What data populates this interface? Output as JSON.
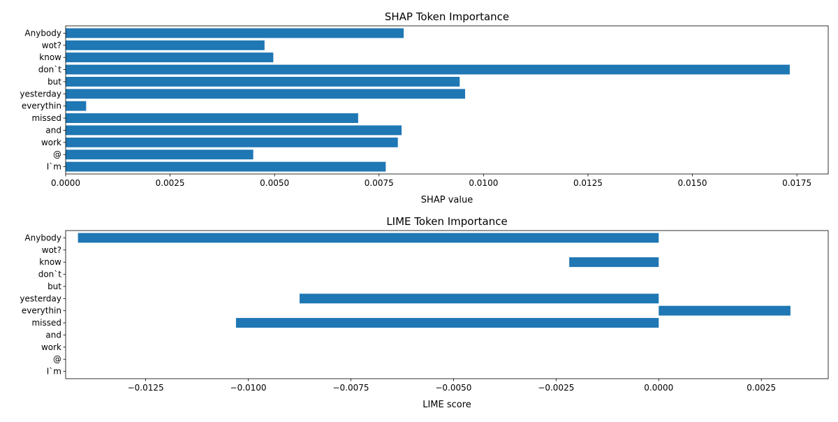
{
  "colors": {
    "bar": "#1f77b4",
    "axis": "#000000",
    "background": "#ffffff"
  },
  "chart_data": [
    {
      "type": "bar",
      "orientation": "horizontal",
      "title": "SHAP Token Importance",
      "xlabel": "SHAP value",
      "ylabel": "",
      "categories": [
        "Anybody",
        "wot?",
        "know",
        "don`t",
        "but",
        "yesterday",
        "everythin",
        "missed",
        "and",
        "work",
        "@",
        "I`m"
      ],
      "values": [
        0.00809,
        0.00476,
        0.00497,
        0.01733,
        0.00943,
        0.00956,
        0.00049,
        0.007,
        0.00804,
        0.00795,
        0.00449,
        0.00766
      ],
      "xlim": [
        0.0,
        0.01825
      ],
      "xticks": [
        0.0,
        0.0025,
        0.005,
        0.0075,
        0.01,
        0.0125,
        0.015,
        0.0175
      ],
      "xtick_labels": [
        "0.0000",
        "0.0025",
        "0.0050",
        "0.0075",
        "0.0100",
        "0.0125",
        "0.0150",
        "0.0175"
      ],
      "grid": false,
      "legend": "none"
    },
    {
      "type": "bar",
      "orientation": "horizontal",
      "title": "LIME Token Importance",
      "xlabel": "LIME score",
      "ylabel": "",
      "categories": [
        "Anybody",
        "wot?",
        "know",
        "don`t",
        "but",
        "yesterday",
        "everythin",
        "missed",
        "and",
        "work",
        "@",
        "I`m"
      ],
      "values": [
        -0.01415,
        0,
        -0.00218,
        0,
        0,
        -0.00875,
        0.00321,
        -0.0103,
        0,
        0,
        0,
        0
      ],
      "xlim": [
        -0.01445,
        0.00413
      ],
      "xticks": [
        -0.0125,
        -0.01,
        -0.0075,
        -0.005,
        -0.0025,
        0.0,
        0.0025
      ],
      "xtick_labels": [
        "−0.0125",
        "−0.0100",
        "−0.0075",
        "−0.0050",
        "−0.0025",
        "0.0000",
        "0.0025"
      ],
      "grid": false,
      "legend": "none"
    }
  ]
}
